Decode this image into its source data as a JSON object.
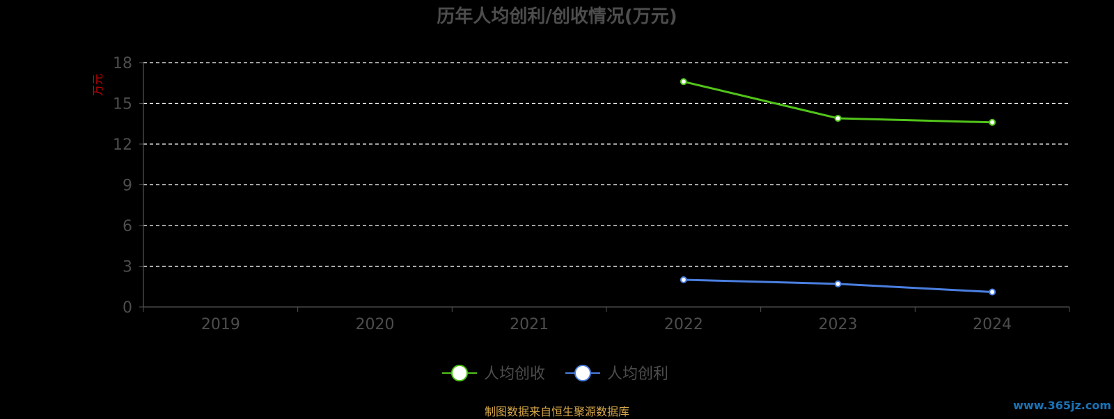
{
  "chart_data": {
    "type": "line",
    "title": "历年人均创利/创收情况(万元)",
    "ylabel": "万元",
    "categories": [
      "2019",
      "2020",
      "2021",
      "2022",
      "2023",
      "2024"
    ],
    "ylim": [
      0,
      18
    ],
    "yticks": [
      0,
      3,
      6,
      9,
      12,
      15,
      18
    ],
    "grid": true,
    "legend_position": "bottom",
    "series": [
      {
        "name": "人均创收",
        "color": "#52c41a",
        "values": [
          null,
          null,
          null,
          16.6,
          13.9,
          13.6
        ]
      },
      {
        "name": "人均创利",
        "color": "#4a7fe0",
        "values": [
          null,
          null,
          null,
          2.0,
          1.7,
          1.1
        ]
      }
    ]
  },
  "colors": {
    "title": "#4d4d4d",
    "tick": "#4d4d4d",
    "ylabel": "#cc0000",
    "grid": "#ffffff",
    "axis": "#555555"
  },
  "footer": {
    "source": "制图数据来自恒生聚源数据库",
    "watermark": "www.365jz.com"
  }
}
